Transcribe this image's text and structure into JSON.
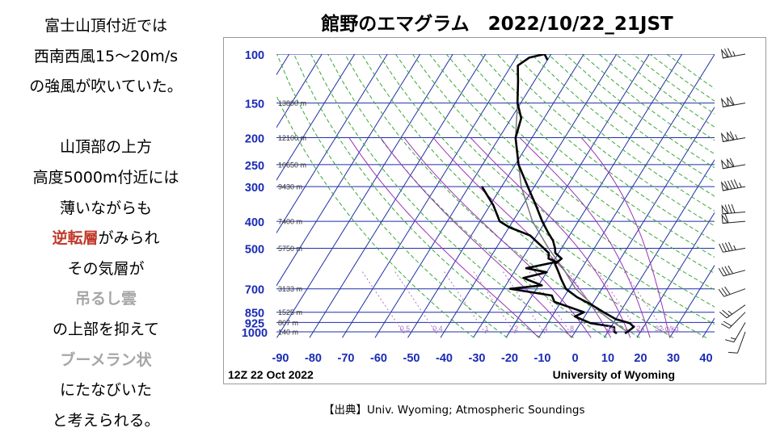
{
  "left_text": {
    "line1": "富士山頂付近では",
    "line2": "西南西風15〜20m/s",
    "line3": "の強風が吹いていた。",
    "line4": "山頂部の上方",
    "line5": "高度5000m付近には",
    "line6": "薄いながらも",
    "line7_em": "逆転層",
    "line7_rest": "がみられ",
    "line8": "その気層が",
    "line9_em": "吊るし雲",
    "line10": "の上部を抑えて",
    "line11_em": "ブーメラン状",
    "line12": "にたなびいた",
    "line13": "と考えられる。"
  },
  "title": "館野のエマグラム　2022/10/22_21JST",
  "source": "【出典】Univ. Wyoming; Atmospheric Soundings",
  "colors": {
    "isotherm": "#1f2fa6",
    "dry_adiabat": "#3aa63a",
    "moist_adiabat": "#9b33b5",
    "mixing_ratio": "#b070c0",
    "pressure_label": "#1a2bb5",
    "profile": "#000000"
  },
  "chart_data": {
    "type": "skew-t",
    "footer_left": "12Z 22 Oct 2022",
    "footer_right": "University of Wyoming",
    "pressure_levels": [
      100,
      150,
      200,
      250,
      300,
      400,
      500,
      700,
      850,
      925,
      1000
    ],
    "pressure_labels": [
      "100",
      "150",
      "200",
      "250",
      "300",
      "400",
      "500",
      "700",
      "850",
      "925",
      "1000"
    ],
    "height_labels": [
      {
        "p": 150,
        "text": "13800 m"
      },
      {
        "p": 200,
        "text": "12100 m"
      },
      {
        "p": 250,
        "text": "10650 m"
      },
      {
        "p": 300,
        "text": "9430 m"
      },
      {
        "p": 400,
        "text": "7400 m"
      },
      {
        "p": 500,
        "text": "5750 m"
      },
      {
        "p": 700,
        "text": "3133 m"
      },
      {
        "p": 850,
        "text": "1525 m"
      },
      {
        "p": 925,
        "text": "807 m"
      },
      {
        "p": 1000,
        "text": "140 m"
      }
    ],
    "temperature_ticks": [
      -90,
      -80,
      -70,
      -60,
      -50,
      -40,
      -30,
      -20,
      -10,
      0,
      10,
      20,
      30,
      40
    ],
    "temperature_tick_labels": [
      "-90",
      "-80",
      "-70",
      "-60",
      "-50",
      "-40",
      "-30",
      "-20",
      "-10",
      "0",
      "10",
      "20",
      "30",
      "40"
    ],
    "mixing_ratio_labels": [
      {
        "x": -52,
        "text": "0.5"
      },
      {
        "x": -42,
        "text": "0.4"
      },
      {
        "x": -27,
        "text": "1"
      },
      {
        "x": -18,
        "text": "2"
      },
      {
        "x": -9,
        "text": "4"
      },
      {
        "x": -1,
        "text": "8"
      },
      {
        "x": 11,
        "text": "16"
      },
      {
        "x": 20,
        "text": "24"
      },
      {
        "x": 28,
        "text": "32 g/kg"
      }
    ],
    "temperature_profile": [
      {
        "p": 1013,
        "x": 15.5
      },
      {
        "p": 1000,
        "x": 16
      },
      {
        "p": 960,
        "x": 17
      },
      {
        "p": 930,
        "x": 15
      },
      {
        "p": 900,
        "x": 10
      },
      {
        "p": 850,
        "x": 5
      },
      {
        "p": 800,
        "x": 0
      },
      {
        "p": 750,
        "x": -6
      },
      {
        "p": 700,
        "x": -11
      },
      {
        "p": 650,
        "x": -14
      },
      {
        "p": 600,
        "x": -17
      },
      {
        "p": 570,
        "x": -19
      },
      {
        "p": 545,
        "x": -18
      },
      {
        "p": 520,
        "x": -21
      },
      {
        "p": 500,
        "x": -22
      },
      {
        "p": 470,
        "x": -24
      },
      {
        "p": 440,
        "x": -27
      },
      {
        "p": 400,
        "x": -31
      },
      {
        "p": 350,
        "x": -36
      },
      {
        "p": 300,
        "x": -42
      },
      {
        "p": 250,
        "x": -49
      },
      {
        "p": 200,
        "x": -55
      },
      {
        "p": 170,
        "x": -57
      },
      {
        "p": 150,
        "x": -61
      },
      {
        "p": 125,
        "x": -65
      },
      {
        "p": 110,
        "x": -68
      },
      {
        "p": 103,
        "x": -66
      },
      {
        "p": 100,
        "x": -62
      },
      {
        "p": 105,
        "x": -60
      }
    ],
    "dewpoint_profile": [
      {
        "p": 1013,
        "x": 13
      },
      {
        "p": 1000,
        "x": 12
      },
      {
        "p": 960,
        "x": 11
      },
      {
        "p": 930,
        "x": 3
      },
      {
        "p": 880,
        "x": -3
      },
      {
        "p": 850,
        "x": -1
      },
      {
        "p": 780,
        "x": -12
      },
      {
        "p": 740,
        "x": -14
      },
      {
        "p": 700,
        "x": -28
      },
      {
        "p": 680,
        "x": -19
      },
      {
        "p": 640,
        "x": -26
      },
      {
        "p": 610,
        "x": -20
      },
      {
        "p": 590,
        "x": -27
      },
      {
        "p": 560,
        "x": -19
      },
      {
        "p": 545,
        "x": -22
      },
      {
        "p": 520,
        "x": -23
      },
      {
        "p": 480,
        "x": -28
      },
      {
        "p": 450,
        "x": -32
      },
      {
        "p": 420,
        "x": -40
      },
      {
        "p": 400,
        "x": -44
      },
      {
        "p": 350,
        "x": -49
      },
      {
        "p": 300,
        "x": -56
      }
    ],
    "parcel_path": [
      {
        "p": 1000,
        "x": 16
      },
      {
        "p": 925,
        "x": 10
      },
      {
        "p": 850,
        "x": 4
      },
      {
        "p": 700,
        "x": -8
      },
      {
        "p": 600,
        "x": -15
      },
      {
        "p": 500,
        "x": -24
      },
      {
        "p": 400,
        "x": -34
      },
      {
        "p": 300,
        "x": -44
      },
      {
        "p": 200,
        "x": -55
      },
      {
        "p": 150,
        "x": -61
      }
    ],
    "wind_barbs": [
      {
        "p": 100,
        "dir": 260,
        "kt": 75
      },
      {
        "p": 150,
        "dir": 260,
        "kt": 110
      },
      {
        "p": 200,
        "dir": 260,
        "kt": 115
      },
      {
        "p": 250,
        "dir": 260,
        "kt": 110
      },
      {
        "p": 300,
        "dir": 260,
        "kt": 95
      },
      {
        "p": 370,
        "dir": 265,
        "kt": 80
      },
      {
        "p": 400,
        "dir": 265,
        "kt": 60
      },
      {
        "p": 500,
        "dir": 260,
        "kt": 45
      },
      {
        "p": 600,
        "dir": 255,
        "kt": 40
      },
      {
        "p": 700,
        "dir": 250,
        "kt": 30
      },
      {
        "p": 800,
        "dir": 235,
        "kt": 25
      },
      {
        "p": 850,
        "dir": 225,
        "kt": 20
      },
      {
        "p": 925,
        "dir": 210,
        "kt": 15
      },
      {
        "p": 1000,
        "dir": 200,
        "kt": 10
      }
    ]
  }
}
